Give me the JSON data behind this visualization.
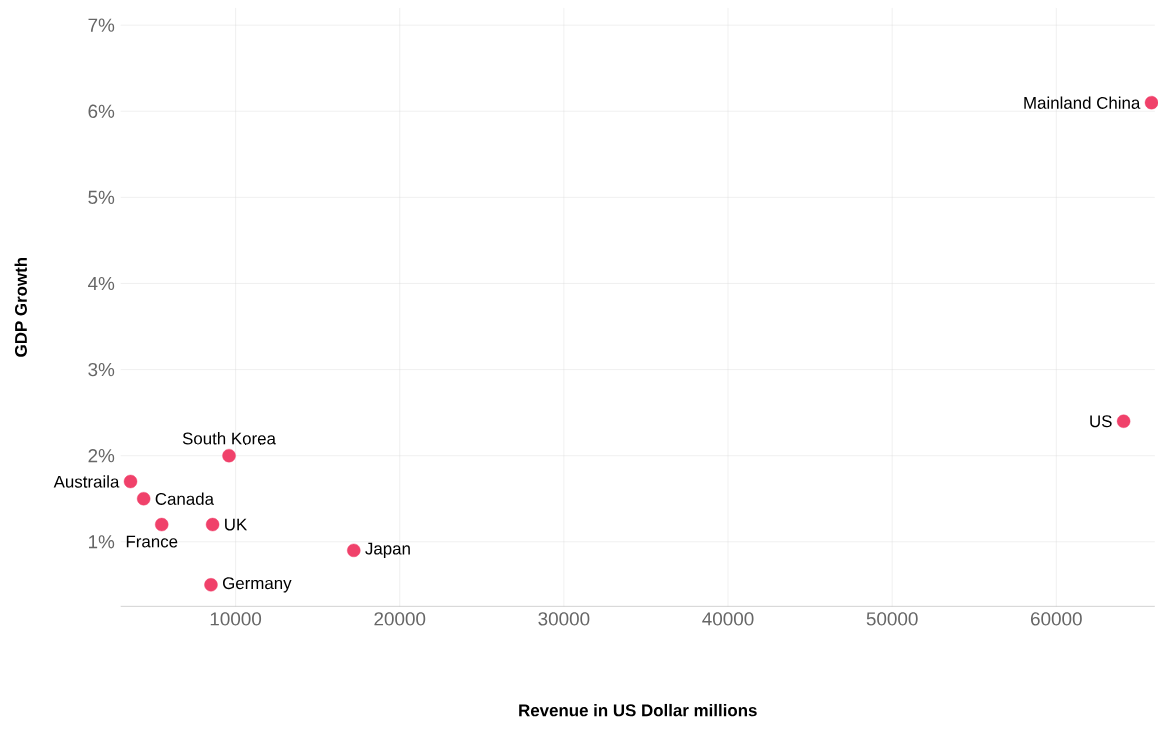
{
  "chart_data": {
    "type": "scatter",
    "xlabel": "Revenue in US Dollar millions",
    "ylabel": "GDP Growth",
    "x": [
      65800,
      64100,
      9600,
      3600,
      4400,
      5500,
      8600,
      17200,
      8500
    ],
    "values": [
      6.1,
      2.4,
      2.0,
      1.7,
      1.5,
      1.2,
      1.2,
      0.9,
      0.5
    ],
    "color": "#f0416a",
    "marker": "circle",
    "grid": true,
    "xlim": [
      3000,
      66000
    ],
    "ylim": [
      0.25,
      7.2
    ],
    "xticks": [
      10000,
      20000,
      30000,
      40000,
      50000,
      60000
    ],
    "yticks": [
      {
        "value": 1,
        "label": "1%"
      },
      {
        "value": 2,
        "label": "2%"
      },
      {
        "value": 3,
        "label": "3%"
      },
      {
        "value": 4,
        "label": "4%"
      },
      {
        "value": 5,
        "label": "5%"
      },
      {
        "value": 6,
        "label": "6%"
      },
      {
        "value": 7,
        "label": "7%"
      }
    ],
    "annotations": [
      {
        "text": "Mainland China",
        "x": 65800,
        "y": 6.1
      },
      {
        "text": "US",
        "x": 64100,
        "y": 2.4
      },
      {
        "text": "South Korea",
        "x": 9600,
        "y": 2.0
      },
      {
        "text": "Austraila",
        "x": 3600,
        "y": 1.7
      },
      {
        "text": "Canada",
        "x": 4400,
        "y": 1.5
      },
      {
        "text": "France",
        "x": 5500,
        "y": 1.2
      },
      {
        "text": "UK",
        "x": 8600,
        "y": 1.2
      },
      {
        "text": "Japan",
        "x": 17200,
        "y": 0.9
      },
      {
        "text": "Germany",
        "x": 8500,
        "y": 0.5
      }
    ]
  }
}
